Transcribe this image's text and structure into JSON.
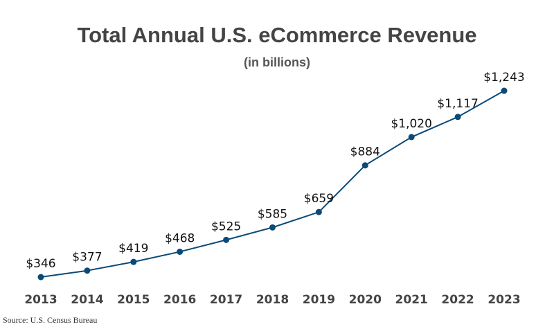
{
  "chart_data": {
    "type": "line",
    "title": "Total Annual U.S. eCommerce Revenue",
    "subtitle": "(in billions)",
    "source": "Source: U.S. Census Bureau",
    "categories": [
      "2013",
      "2014",
      "2015",
      "2016",
      "2017",
      "2018",
      "2019",
      "2020",
      "2021",
      "2022",
      "2023"
    ],
    "values": [
      346,
      377,
      419,
      468,
      525,
      585,
      659,
      884,
      1020,
      1117,
      1243
    ],
    "data_labels": [
      "$346",
      "$377",
      "$419",
      "$468",
      "$525",
      "$585",
      "$659",
      "$884",
      "$1,020",
      "$1,117",
      "$1,243"
    ],
    "ylim": [
      0,
      1450
    ],
    "grid": false,
    "line_color": "#0b4a76"
  }
}
